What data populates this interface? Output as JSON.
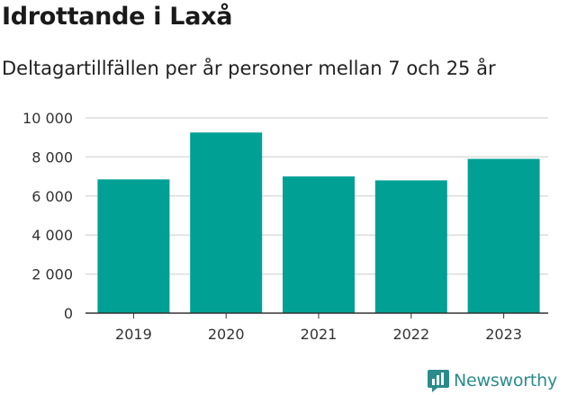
{
  "title": "Idrottande i Laxå",
  "subtitle": "Deltagartillfällen per år personer mellan 7 och 25 år",
  "brand": {
    "name": "Newsworthy",
    "icon": "newsworthy-logo-icon"
  },
  "colors": {
    "bar": "#00a095",
    "grid": "#dddddd",
    "axis": "#333333",
    "brand": "#2a8c8a"
  },
  "chart_data": {
    "type": "bar",
    "categories": [
      "2019",
      "2020",
      "2021",
      "2022",
      "2023"
    ],
    "values": [
      6850,
      9250,
      7000,
      6800,
      7900
    ],
    "ylim": [
      0,
      10000
    ],
    "yticks": [
      0,
      2000,
      4000,
      6000,
      8000,
      10000
    ],
    "ytick_labels": [
      "0",
      "2 000",
      "4 000",
      "6 000",
      "8 000",
      "10 000"
    ],
    "grid": true,
    "xlabel": "",
    "ylabel": ""
  }
}
